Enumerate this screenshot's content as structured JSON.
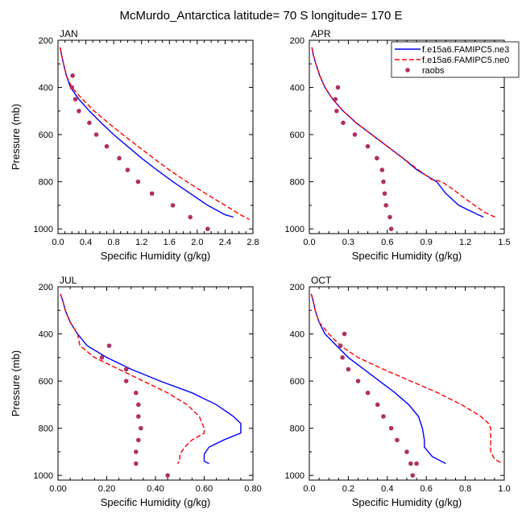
{
  "title": "McMurdo_Antarctica  latitude= 70 S longitude= 170 E",
  "legend": [
    {
      "label": "f.e15a6.FAMIPC5.ne3",
      "color": "#0000ff",
      "style": "solid"
    },
    {
      "label": "f.e15a6.FAMIPC5.ne0",
      "color": "#ff0000",
      "style": "dashed"
    },
    {
      "label": "raobs",
      "color": "#b03060",
      "style": "marker"
    }
  ],
  "chart_data": [
    {
      "type": "line",
      "panel": "JAN",
      "xlabel": "Specific Humidity (g/kg)",
      "ylabel": "Pressure (mb)",
      "xlim": [
        0,
        2.8
      ],
      "ylim": [
        200,
        1020
      ],
      "y_reversed": true,
      "xticks": [
        "0.0",
        "0.4",
        "0.8",
        "1.2",
        "1.6",
        "2.0",
        "2.4",
        "2.8"
      ],
      "yticks": [
        "200",
        "400",
        "600",
        "800",
        "1000"
      ],
      "series": [
        {
          "name": "f.e15a6.FAMIPC5.ne3",
          "points": [
            [
              0.03,
              230
            ],
            [
              0.05,
              260
            ],
            [
              0.08,
              300
            ],
            [
              0.12,
              350
            ],
            [
              0.18,
              400
            ],
            [
              0.3,
              450
            ],
            [
              0.45,
              500
            ],
            [
              0.62,
              550
            ],
            [
              0.8,
              600
            ],
            [
              1.0,
              650
            ],
            [
              1.2,
              700
            ],
            [
              1.42,
              750
            ],
            [
              1.65,
              800
            ],
            [
              1.9,
              850
            ],
            [
              2.15,
              900
            ],
            [
              2.4,
              940
            ],
            [
              2.52,
              950
            ]
          ]
        },
        {
          "name": "f.e15a6.FAMIPC5.ne0",
          "points": [
            [
              0.03,
              230
            ],
            [
              0.05,
              260
            ],
            [
              0.08,
              300
            ],
            [
              0.12,
              350
            ],
            [
              0.2,
              400
            ],
            [
              0.35,
              450
            ],
            [
              0.52,
              500
            ],
            [
              0.72,
              550
            ],
            [
              0.93,
              600
            ],
            [
              1.15,
              650
            ],
            [
              1.37,
              700
            ],
            [
              1.6,
              750
            ],
            [
              1.85,
              800
            ],
            [
              2.12,
              850
            ],
            [
              2.4,
              900
            ],
            [
              2.62,
              940
            ],
            [
              2.75,
              960
            ]
          ]
        },
        {
          "name": "raobs",
          "points": [
            [
              0.21,
              350
            ],
            [
              0.2,
              400
            ],
            [
              0.25,
              450
            ],
            [
              0.3,
              500
            ],
            [
              0.45,
              550
            ],
            [
              0.55,
              600
            ],
            [
              0.7,
              650
            ],
            [
              0.88,
              700
            ],
            [
              1.0,
              750
            ],
            [
              1.15,
              800
            ],
            [
              1.35,
              850
            ],
            [
              1.65,
              900
            ],
            [
              1.9,
              950
            ],
            [
              2.15,
              1000
            ]
          ]
        }
      ]
    },
    {
      "type": "line",
      "panel": "APR",
      "xlabel": "Specific Humidity (g/kg)",
      "ylabel": "",
      "xlim": [
        0,
        1.5
      ],
      "ylim": [
        200,
        1020
      ],
      "y_reversed": true,
      "xticks": [
        "0.0",
        "0.3",
        "0.6",
        "0.9",
        "1.2",
        "1.5"
      ],
      "yticks": [
        "200",
        "400",
        "600",
        "800",
        "1000"
      ],
      "series": [
        {
          "name": "f.e15a6.FAMIPC5.ne3",
          "points": [
            [
              0.02,
              230
            ],
            [
              0.03,
              260
            ],
            [
              0.05,
              300
            ],
            [
              0.08,
              350
            ],
            [
              0.12,
              400
            ],
            [
              0.18,
              450
            ],
            [
              0.26,
              500
            ],
            [
              0.36,
              550
            ],
            [
              0.48,
              600
            ],
            [
              0.6,
              650
            ],
            [
              0.72,
              700
            ],
            [
              0.83,
              750
            ],
            [
              0.92,
              780
            ],
            [
              0.98,
              800
            ],
            [
              1.05,
              850
            ],
            [
              1.15,
              900
            ],
            [
              1.3,
              940
            ],
            [
              1.34,
              950
            ]
          ]
        },
        {
          "name": "f.e15a6.FAMIPC5.ne0",
          "points": [
            [
              0.02,
              230
            ],
            [
              0.03,
              260
            ],
            [
              0.05,
              300
            ],
            [
              0.08,
              350
            ],
            [
              0.12,
              400
            ],
            [
              0.18,
              450
            ],
            [
              0.26,
              500
            ],
            [
              0.36,
              550
            ],
            [
              0.48,
              600
            ],
            [
              0.6,
              650
            ],
            [
              0.72,
              700
            ],
            [
              0.84,
              750
            ],
            [
              0.94,
              790
            ],
            [
              1.02,
              800
            ],
            [
              1.1,
              830
            ],
            [
              1.22,
              880
            ],
            [
              1.35,
              930
            ],
            [
              1.43,
              950
            ]
          ]
        },
        {
          "name": "raobs",
          "points": [
            [
              0.22,
              400
            ],
            [
              0.2,
              450
            ],
            [
              0.21,
              500
            ],
            [
              0.26,
              550
            ],
            [
              0.35,
              600
            ],
            [
              0.45,
              650
            ],
            [
              0.52,
              700
            ],
            [
              0.56,
              750
            ],
            [
              0.57,
              800
            ],
            [
              0.58,
              850
            ],
            [
              0.59,
              900
            ],
            [
              0.62,
              950
            ],
            [
              0.63,
              1000
            ]
          ]
        }
      ]
    },
    {
      "type": "line",
      "panel": "JUL",
      "xlabel": "Specific Humidity (g/kg)",
      "ylabel": "Pressure (mb)",
      "xlim": [
        0,
        0.8
      ],
      "ylim": [
        200,
        1020
      ],
      "y_reversed": true,
      "xticks": [
        "0.00",
        "0.20",
        "0.40",
        "0.60",
        "0.80"
      ],
      "yticks": [
        "200",
        "400",
        "600",
        "800",
        "1000"
      ],
      "series": [
        {
          "name": "f.e15a6.FAMIPC5.ne3",
          "points": [
            [
              0.01,
              230
            ],
            [
              0.02,
              260
            ],
            [
              0.03,
              300
            ],
            [
              0.05,
              350
            ],
            [
              0.08,
              400
            ],
            [
              0.12,
              450
            ],
            [
              0.2,
              500
            ],
            [
              0.3,
              550
            ],
            [
              0.42,
              600
            ],
            [
              0.55,
              650
            ],
            [
              0.65,
              700
            ],
            [
              0.72,
              750
            ],
            [
              0.75,
              780
            ],
            [
              0.75,
              820
            ],
            [
              0.68,
              850
            ],
            [
              0.62,
              880
            ],
            [
              0.6,
              910
            ],
            [
              0.6,
              940
            ],
            [
              0.62,
              950
            ]
          ]
        },
        {
          "name": "f.e15a6.FAMIPC5.ne0",
          "points": [
            [
              0.01,
              230
            ],
            [
              0.02,
              260
            ],
            [
              0.03,
              300
            ],
            [
              0.05,
              350
            ],
            [
              0.08,
              400
            ],
            [
              0.09,
              450
            ],
            [
              0.15,
              500
            ],
            [
              0.25,
              550
            ],
            [
              0.35,
              600
            ],
            [
              0.45,
              650
            ],
            [
              0.53,
              700
            ],
            [
              0.58,
              750
            ],
            [
              0.6,
              800
            ],
            [
              0.6,
              820
            ],
            [
              0.55,
              850
            ],
            [
              0.52,
              880
            ],
            [
              0.5,
              910
            ],
            [
              0.5,
              940
            ],
            [
              0.49,
              950
            ]
          ]
        },
        {
          "name": "raobs",
          "points": [
            [
              0.21,
              450
            ],
            [
              0.18,
              500
            ],
            [
              0.28,
              550
            ],
            [
              0.28,
              600
            ],
            [
              0.32,
              650
            ],
            [
              0.33,
              700
            ],
            [
              0.33,
              750
            ],
            [
              0.34,
              800
            ],
            [
              0.33,
              850
            ],
            [
              0.32,
              900
            ],
            [
              0.32,
              950
            ],
            [
              0.45,
              1000
            ]
          ]
        }
      ]
    },
    {
      "type": "line",
      "panel": "OCT",
      "xlabel": "Specific Humidity (g/kg)",
      "ylabel": "",
      "xlim": [
        0,
        1.0
      ],
      "ylim": [
        200,
        1020
      ],
      "y_reversed": true,
      "xticks": [
        "0.0",
        "0.2",
        "0.4",
        "0.6",
        "0.8",
        "1.0"
      ],
      "yticks": [
        "200",
        "400",
        "600",
        "800",
        "1000"
      ],
      "series": [
        {
          "name": "f.e15a6.FAMIPC5.ne3",
          "points": [
            [
              0.01,
              230
            ],
            [
              0.02,
              260
            ],
            [
              0.03,
              300
            ],
            [
              0.05,
              350
            ],
            [
              0.08,
              400
            ],
            [
              0.14,
              450
            ],
            [
              0.2,
              500
            ],
            [
              0.28,
              550
            ],
            [
              0.36,
              600
            ],
            [
              0.44,
              650
            ],
            [
              0.51,
              700
            ],
            [
              0.56,
              750
            ],
            [
              0.58,
              800
            ],
            [
              0.59,
              850
            ],
            [
              0.59,
              880
            ],
            [
              0.63,
              920
            ],
            [
              0.7,
              950
            ]
          ]
        },
        {
          "name": "f.e15a6.FAMIPC5.ne0",
          "points": [
            [
              0.01,
              230
            ],
            [
              0.02,
              260
            ],
            [
              0.03,
              300
            ],
            [
              0.05,
              350
            ],
            [
              0.1,
              400
            ],
            [
              0.16,
              450
            ],
            [
              0.25,
              500
            ],
            [
              0.38,
              550
            ],
            [
              0.52,
              600
            ],
            [
              0.66,
              650
            ],
            [
              0.78,
              700
            ],
            [
              0.88,
              750
            ],
            [
              0.92,
              780
            ],
            [
              0.93,
              800
            ],
            [
              0.93,
              850
            ],
            [
              0.93,
              900
            ],
            [
              0.95,
              930
            ],
            [
              0.99,
              950
            ]
          ]
        },
        {
          "name": "raobs",
          "points": [
            [
              0.18,
              400
            ],
            [
              0.16,
              450
            ],
            [
              0.17,
              500
            ],
            [
              0.2,
              550
            ],
            [
              0.25,
              600
            ],
            [
              0.3,
              650
            ],
            [
              0.35,
              700
            ],
            [
              0.38,
              750
            ],
            [
              0.42,
              800
            ],
            [
              0.45,
              850
            ],
            [
              0.5,
              900
            ],
            [
              0.52,
              950
            ],
            [
              0.55,
              950
            ],
            [
              0.53,
              1000
            ]
          ]
        }
      ]
    }
  ]
}
